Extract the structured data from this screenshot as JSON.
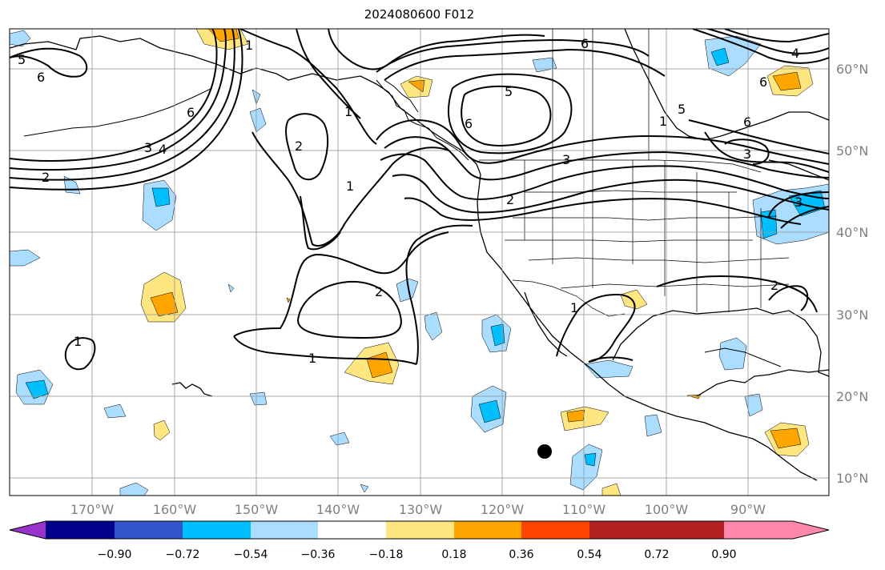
{
  "title": "2024080600 F012",
  "longitude_labels": [
    "170°W",
    "160°W",
    "150°W",
    "140°W",
    "130°W",
    "120°W",
    "110°W",
    "100°W",
    "90°W"
  ],
  "latitude_labels": [
    "60°N",
    "50°N",
    "40°N",
    "30°N",
    "20°N",
    "10°N"
  ],
  "colorbar": {
    "ticks": [
      "−0.90",
      "−0.72",
      "−0.54",
      "−0.36",
      "−0.18",
      "0.18",
      "0.36",
      "0.54",
      "0.72",
      "0.90"
    ],
    "colors": [
      "#9933cc",
      "#00008b",
      "#3355cc",
      "#00bfff",
      "#aaddff",
      "#ffffff",
      "#ffe680",
      "#ffa500",
      "#ff4500",
      "#b22222",
      "#ff88aa"
    ]
  },
  "contour_labels": [
    {
      "text": "5"
    },
    {
      "text": "6"
    },
    {
      "text": "6"
    },
    {
      "text": "4"
    },
    {
      "text": "3"
    },
    {
      "text": "2"
    },
    {
      "text": "1"
    },
    {
      "text": "2"
    },
    {
      "text": "1"
    },
    {
      "text": "1"
    },
    {
      "text": "2"
    },
    {
      "text": "1"
    },
    {
      "text": "1"
    },
    {
      "text": "5"
    },
    {
      "text": "6"
    },
    {
      "text": "6"
    },
    {
      "text": "5"
    },
    {
      "text": "6"
    },
    {
      "text": "3"
    },
    {
      "text": "2"
    },
    {
      "text": "1"
    },
    {
      "text": "6"
    },
    {
      "text": "4"
    },
    {
      "text": "3"
    },
    {
      "text": "3"
    },
    {
      "text": "2"
    },
    {
      "text": "1"
    }
  ]
}
